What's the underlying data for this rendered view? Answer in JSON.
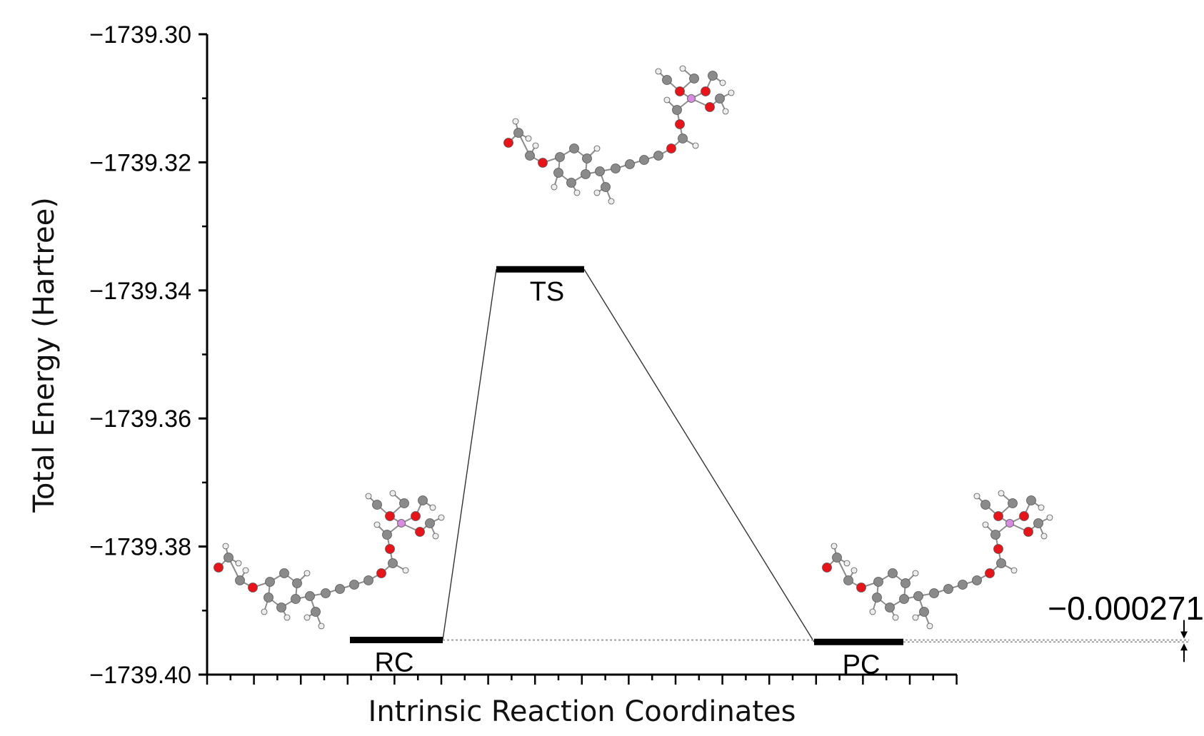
{
  "chart_data": {
    "type": "line",
    "xlabel": "Intrinsic Reaction Coordinates",
    "ylabel": "Total Energy (Hartree)",
    "ylim": [
      -1739.4,
      -1739.3
    ],
    "yticks": [
      {
        "value": -1739.3,
        "label": "−1739.30"
      },
      {
        "value": -1739.32,
        "label": "−1739.32"
      },
      {
        "value": -1739.34,
        "label": "−1739.34"
      },
      {
        "value": -1739.36,
        "label": "−1739.36"
      },
      {
        "value": -1739.38,
        "label": "−1739.38"
      },
      {
        "value": -1739.4,
        "label": "−1739.40"
      }
    ],
    "states": [
      {
        "label": "RC",
        "energy": -1739.3946
      },
      {
        "label": "TS",
        "energy": -1739.3367
      },
      {
        "label": "PC",
        "energy": -1739.3949
      }
    ],
    "annotation": {
      "label": "−0.000271"
    },
    "colors": {
      "oxygen": "#e8141a",
      "carbon": "#8a8a8a",
      "hydrogen": "#ededed",
      "phosphorus": "#d88be0"
    }
  }
}
